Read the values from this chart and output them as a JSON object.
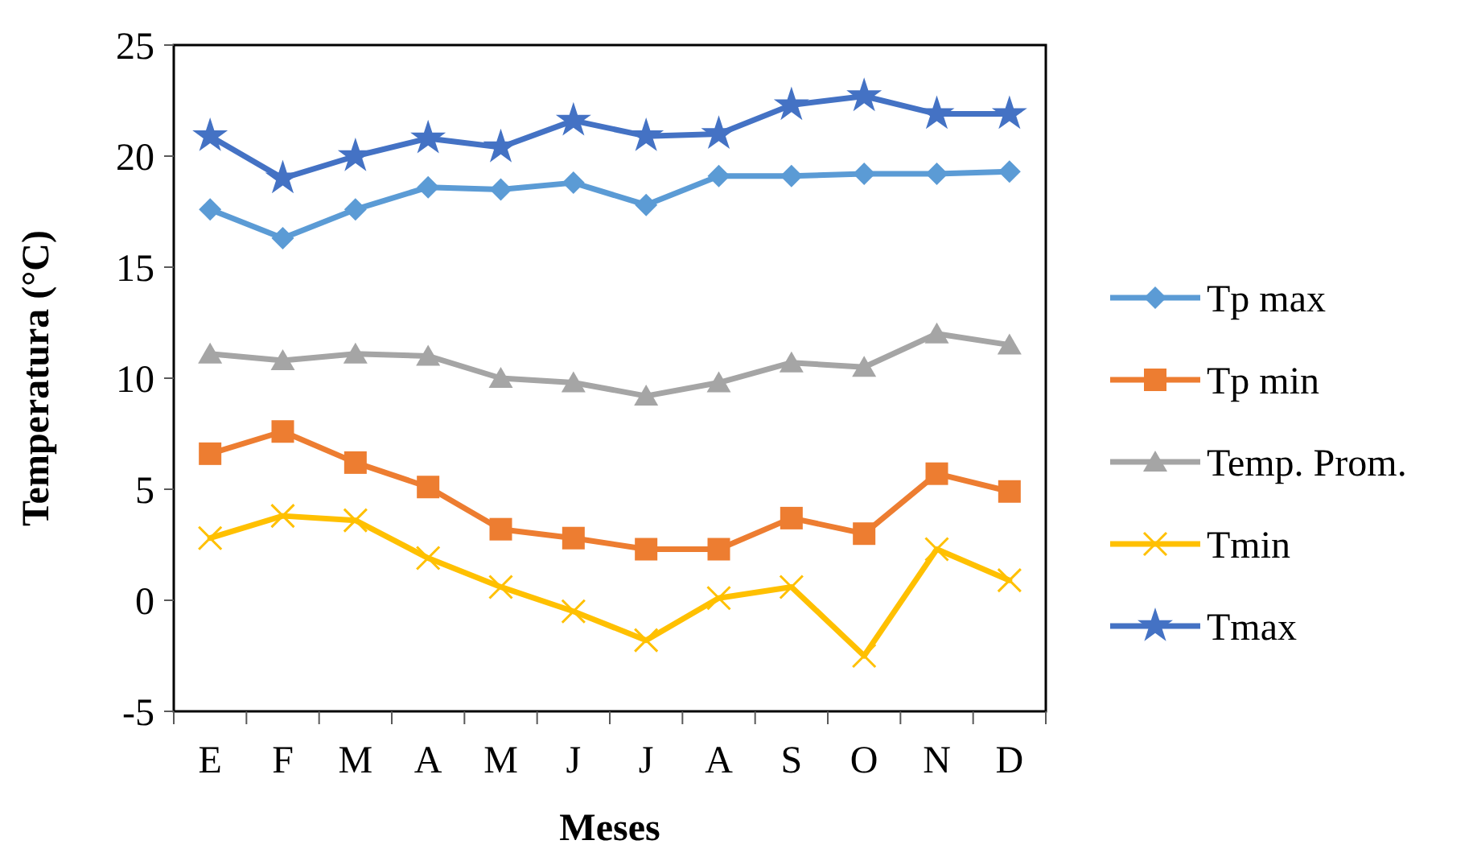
{
  "chart_data": {
    "type": "line",
    "xlabel": "Meses",
    "ylabel": "Temperatura (°C)",
    "categories": [
      "E",
      "F",
      "M",
      "A",
      "M",
      "J",
      "J",
      "A",
      "S",
      "O",
      "N",
      "D"
    ],
    "ylim": [
      -5,
      25
    ],
    "yticks": [
      -5,
      0,
      5,
      10,
      15,
      20,
      25
    ],
    "grid": false,
    "legend": "right",
    "series": [
      {
        "name": "Tp max",
        "color": "#5b9bd5",
        "marker": "diamond",
        "values": [
          17.6,
          16.3,
          17.6,
          18.6,
          18.5,
          18.8,
          17.8,
          19.1,
          19.1,
          19.2,
          19.2,
          19.3
        ]
      },
      {
        "name": "Tp min",
        "color": "#ed7d31",
        "marker": "square",
        "values": [
          6.6,
          7.6,
          6.2,
          5.1,
          3.2,
          2.8,
          2.3,
          2.3,
          3.7,
          3.0,
          5.7,
          4.9
        ]
      },
      {
        "name": "Temp. Prom.",
        "color": "#a5a5a5",
        "marker": "triangle",
        "values": [
          11.1,
          10.8,
          11.1,
          11.0,
          10.0,
          9.8,
          9.2,
          9.8,
          10.7,
          10.5,
          12.0,
          11.5
        ]
      },
      {
        "name": "Tmin",
        "color": "#ffc000",
        "marker": "cross",
        "values": [
          2.8,
          3.8,
          3.6,
          1.9,
          0.6,
          -0.5,
          -1.8,
          0.1,
          0.6,
          -2.5,
          2.3,
          0.9
        ]
      },
      {
        "name": "Tmax",
        "color": "#4472c4",
        "marker": "star",
        "values": [
          20.9,
          19.0,
          20.0,
          20.8,
          20.4,
          21.6,
          20.9,
          21.0,
          22.3,
          22.7,
          21.9,
          21.9
        ]
      }
    ]
  }
}
